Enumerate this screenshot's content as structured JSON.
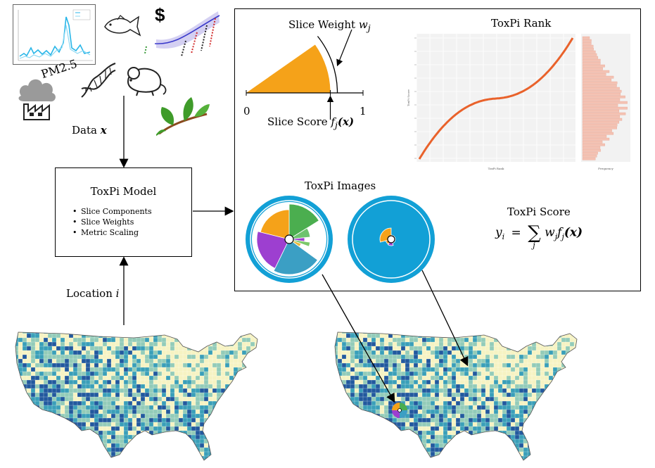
{
  "inputs": {
    "pm_label": "PM2.5",
    "currency_symbol": "$",
    "data_label": "Data ",
    "data_var": "x"
  },
  "model": {
    "title": "ToxPi Model",
    "items": [
      "Slice Components",
      "Slice Weights",
      "Metric Scaling"
    ]
  },
  "location": {
    "label": "Location ",
    "var": "i"
  },
  "slice_diagram": {
    "weight_label": "Slice Weight ",
    "weight_var": "w",
    "weight_sub": "j",
    "score_label": "Slice Score ",
    "score_func": "f",
    "score_sub": "j",
    "score_arg": "(x)",
    "axis_min": "0",
    "axis_max": "1",
    "score_value": 0.72
  },
  "rank_chart": {
    "title": "ToxPi Rank",
    "xlabel": "ToxPi Rank",
    "ylabel": "ToxPi Score",
    "hist_xlabel": "Frequency"
  },
  "images_title": "ToxPi Images",
  "score_formula": {
    "title": "ToxPi Score",
    "lhs": "y",
    "lhs_sub": "i",
    "eq": "=",
    "sum": "∑",
    "sum_sub": "j",
    "w": "w",
    "w_sub": "j",
    "f": "f",
    "f_sub": "j",
    "arg": "(x)"
  },
  "colors": {
    "orange": "#f5a219",
    "green": "#4bae4f",
    "purple": "#9d3fd0",
    "teal": "#3b9fc4",
    "blue_bg": "#12a0d6",
    "rank_line": "#e9622b",
    "hist_bar": "#f4c2b3",
    "map_light": "#f6f3c2",
    "map_mid": "#93cbb8",
    "map_teal": "#3a9fb8",
    "map_dark": "#22599e"
  }
}
